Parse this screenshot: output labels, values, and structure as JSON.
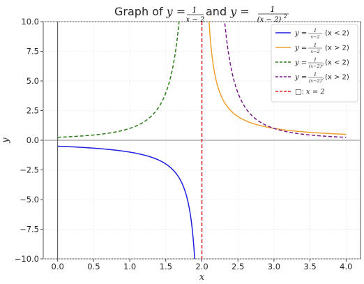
{
  "chart_data": {
    "type": "line",
    "title": {
      "prefix": "Graph of ",
      "eq1_lhs": "y",
      "eq1_num": "1",
      "eq1_den": "x − 2",
      "joiner": " and ",
      "eq2_lhs": "y",
      "eq2_num": "1",
      "eq2_den": "(x − 2)",
      "eq2_den_exp": "2"
    },
    "xlabel": "x",
    "ylabel": "y",
    "xlim": [
      -0.2,
      4.2
    ],
    "ylim": [
      -10,
      10
    ],
    "xticks": [
      "0.0",
      "0.5",
      "1.0",
      "1.5",
      "2.0",
      "2.5",
      "3.0",
      "3.5",
      "4.0"
    ],
    "xtick_values": [
      0,
      0.5,
      1,
      1.5,
      2,
      2.5,
      3,
      3.5,
      4
    ],
    "yticks": [
      "−10.0",
      "−7.5",
      "−5.0",
      "−2.5",
      "0.0",
      "2.5",
      "5.0",
      "7.5",
      "10.0"
    ],
    "ytick_values": [
      -10,
      -7.5,
      -5,
      -2.5,
      0,
      2.5,
      5,
      7.5,
      10
    ],
    "grid": true,
    "legend_position": "top-right",
    "asymptote_x": 2,
    "series": [
      {
        "name": "y = 1/(x−2) (x < 2)",
        "legend_num": "1",
        "legend_den": "x−2",
        "legend_den_exp": "",
        "legend_cond": "(x < 2)",
        "color": "#1f1fdf",
        "dash": "solid",
        "func": "inv",
        "domain": [
          0,
          1.9
        ]
      },
      {
        "name": "y = 1/(x−2) (x > 2)",
        "legend_num": "1",
        "legend_den": "x−2",
        "legend_den_exp": "",
        "legend_cond": "(x > 2)",
        "color": "#f0a030",
        "dash": "solid",
        "func": "inv",
        "domain": [
          2.1,
          4
        ]
      },
      {
        "name": "y = 1/(x−2)^2 (x < 2)",
        "legend_num": "1",
        "legend_den": "(x−2)",
        "legend_den_exp": "2",
        "legend_cond": "(x < 2)",
        "color": "#2a7a1a",
        "dash": "dashed",
        "func": "invsq",
        "domain": [
          0,
          1.9
        ]
      },
      {
        "name": "y = 1/(x−2)^2 (x > 2)",
        "legend_num": "1",
        "legend_den": "(x−2)",
        "legend_den_exp": "2",
        "legend_cond": "(x > 2)",
        "color": "#7a1a8a",
        "dash": "dashed",
        "func": "invsq",
        "domain": [
          2.1,
          4
        ]
      }
    ],
    "asymptote_legend": {
      "prefix": "□: ",
      "label": "x = 2",
      "color": "#e02020"
    }
  }
}
